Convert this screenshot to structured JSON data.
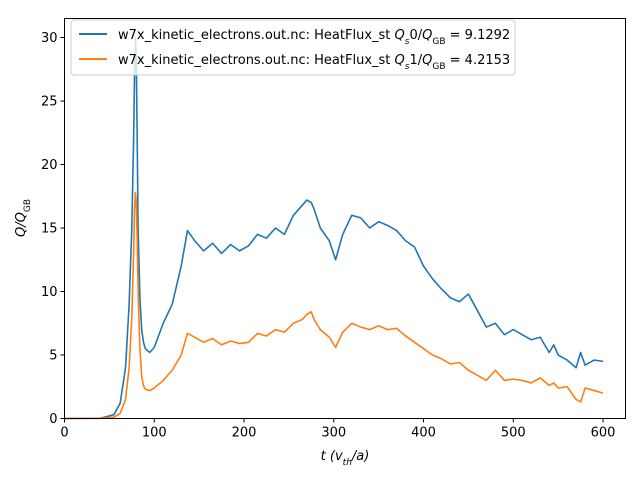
{
  "chart_data": {
    "type": "line",
    "title": "",
    "xlabel": "t (v_th/a)",
    "ylabel": "Q/Q_GB",
    "xlim": [
      0,
      625
    ],
    "ylim": [
      0,
      31.5
    ],
    "x_ticks": [
      0,
      100,
      200,
      300,
      400,
      500,
      600
    ],
    "y_ticks": [
      0,
      5,
      10,
      15,
      20,
      25,
      30
    ],
    "grid": false,
    "legend_position": "top-left",
    "series": [
      {
        "name": "w7x_kinetic_electrons.out.nc: HeatFlux_st Q_s0/Q_GB = 9.1292",
        "color": "#1f77b4",
        "x": [
          0,
          40,
          55,
          62,
          68,
          72,
          75,
          77,
          78,
          79,
          80,
          81,
          82,
          84,
          86,
          88,
          90,
          95,
          100,
          110,
          120,
          130,
          137,
          145,
          155,
          165,
          175,
          185,
          195,
          205,
          215,
          225,
          235,
          245,
          255,
          265,
          270,
          275,
          278,
          285,
          295,
          302,
          310,
          320,
          330,
          340,
          350,
          360,
          370,
          380,
          390,
          400,
          410,
          420,
          430,
          440,
          450,
          460,
          470,
          480,
          490,
          500,
          510,
          520,
          530,
          540,
          545,
          550,
          560,
          570,
          575,
          580,
          590,
          600
        ],
        "y": [
          0,
          0.02,
          0.3,
          1.2,
          4.0,
          9.0,
          15.0,
          22.0,
          27.0,
          30.0,
          28.0,
          22.0,
          15.0,
          9.5,
          7.0,
          6.0,
          5.5,
          5.2,
          5.6,
          7.5,
          9.0,
          12.0,
          14.8,
          14.0,
          13.2,
          13.8,
          13.0,
          13.7,
          13.2,
          13.6,
          14.5,
          14.2,
          15.0,
          14.5,
          16.0,
          16.8,
          17.2,
          17.0,
          16.5,
          15.0,
          14.0,
          12.5,
          14.5,
          16.0,
          15.8,
          15.0,
          15.5,
          15.2,
          14.8,
          14.0,
          13.5,
          12.0,
          11.0,
          10.2,
          9.5,
          9.2,
          9.8,
          8.5,
          7.2,
          7.5,
          6.6,
          7.0,
          6.6,
          6.2,
          6.4,
          5.2,
          5.8,
          5.0,
          4.6,
          4.0,
          5.2,
          4.2,
          4.6,
          4.5
        ]
      },
      {
        "name": "w7x_kinetic_electrons.out.nc: HeatFlux_st Q_s1/Q_GB = 4.2153",
        "color": "#ff7f0e",
        "x": [
          0,
          40,
          55,
          62,
          68,
          72,
          75,
          77,
          78,
          79,
          80,
          81,
          82,
          84,
          86,
          88,
          90,
          95,
          100,
          110,
          120,
          130,
          137,
          145,
          155,
          165,
          175,
          185,
          195,
          205,
          215,
          225,
          235,
          245,
          255,
          265,
          270,
          275,
          278,
          285,
          295,
          302,
          310,
          320,
          330,
          340,
          350,
          360,
          370,
          380,
          390,
          400,
          410,
          420,
          430,
          440,
          450,
          460,
          470,
          480,
          490,
          500,
          510,
          520,
          530,
          540,
          545,
          550,
          560,
          570,
          575,
          580,
          590,
          600
        ],
        "y": [
          0,
          0.01,
          0.1,
          0.4,
          1.5,
          4.0,
          8.0,
          13.0,
          16.5,
          17.8,
          17.0,
          14.0,
          10.0,
          5.5,
          3.3,
          2.6,
          2.3,
          2.2,
          2.4,
          3.0,
          3.8,
          5.0,
          6.7,
          6.4,
          6.0,
          6.3,
          5.8,
          6.1,
          5.9,
          6.0,
          6.7,
          6.5,
          7.0,
          6.8,
          7.5,
          7.8,
          8.2,
          8.4,
          7.8,
          7.0,
          6.4,
          5.6,
          6.8,
          7.5,
          7.2,
          7.0,
          7.3,
          7.0,
          7.1,
          6.5,
          6.0,
          5.5,
          5.0,
          4.7,
          4.3,
          4.4,
          3.8,
          3.4,
          3.0,
          3.8,
          3.0,
          3.1,
          3.0,
          2.8,
          3.2,
          2.6,
          2.8,
          2.4,
          2.5,
          1.5,
          1.3,
          2.4,
          2.2,
          2.0
        ]
      }
    ]
  }
}
